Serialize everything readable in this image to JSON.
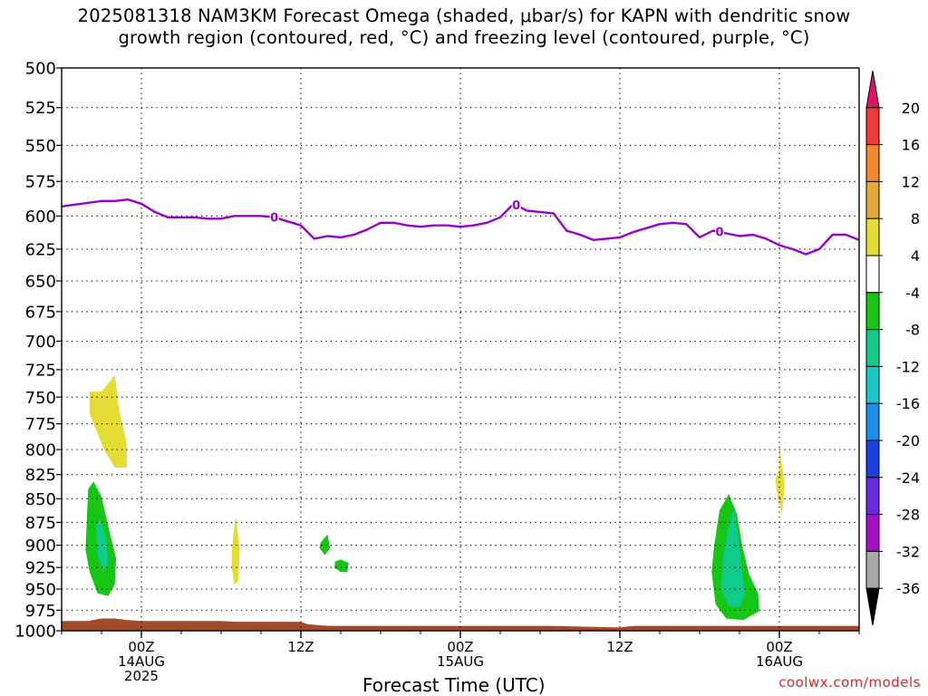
{
  "title": {
    "line1": "2025081318 NAM3KM Forecast Omega (shaded, μbar/s) for KAPN with dendritic snow",
    "line2": "growth region (contoured, red, °C) and freezing level (contoured, purple, °C)"
  },
  "credit": "coolwx.com/models",
  "chart_data": {
    "type": "time-height cross section",
    "x_unit": "hours from 2025-08-13 18Z",
    "xlim": [
      0,
      60
    ],
    "ylim": [
      1000,
      500
    ],
    "xlabel": "Forecast Time (UTC)",
    "y_ticks": [
      500,
      525,
      550,
      575,
      600,
      625,
      650,
      675,
      700,
      725,
      750,
      775,
      800,
      825,
      850,
      875,
      900,
      925,
      950,
      975,
      1000
    ],
    "x_ticks": [
      {
        "x": 6,
        "lines": [
          "00Z",
          "14AUG",
          "2025"
        ]
      },
      {
        "x": 18,
        "lines": [
          "12Z"
        ]
      },
      {
        "x": 30,
        "lines": [
          "00Z",
          "15AUG"
        ]
      },
      {
        "x": 42,
        "lines": [
          "12Z"
        ]
      },
      {
        "x": 54,
        "lines": [
          "00Z",
          "16AUG"
        ]
      }
    ],
    "grid": true,
    "freezing_level": {
      "label": "0",
      "color": "#9900cc",
      "label_x": [
        16.0,
        34.2,
        49.5
      ],
      "points": [
        [
          0,
          593
        ],
        [
          1.5,
          591
        ],
        [
          3,
          589
        ],
        [
          4,
          589
        ],
        [
          5,
          588
        ],
        [
          6,
          591
        ],
        [
          7,
          597
        ],
        [
          8,
          601
        ],
        [
          9,
          601
        ],
        [
          10,
          601
        ],
        [
          11,
          602
        ],
        [
          12,
          602
        ],
        [
          13,
          600
        ],
        [
          14,
          600
        ],
        [
          15,
          600
        ],
        [
          16,
          601
        ],
        [
          17,
          604
        ],
        [
          18,
          607
        ],
        [
          19,
          617
        ],
        [
          20,
          615
        ],
        [
          21,
          616
        ],
        [
          22,
          614
        ],
        [
          23,
          610
        ],
        [
          24,
          605
        ],
        [
          25,
          605
        ],
        [
          26,
          607
        ],
        [
          27,
          608
        ],
        [
          28,
          607
        ],
        [
          29,
          607
        ],
        [
          30,
          608
        ],
        [
          31,
          607
        ],
        [
          32,
          605
        ],
        [
          33,
          601
        ],
        [
          34,
          591
        ],
        [
          35,
          596
        ],
        [
          36,
          597
        ],
        [
          37,
          598
        ],
        [
          38,
          611
        ],
        [
          39,
          614
        ],
        [
          40,
          618
        ],
        [
          41,
          617
        ],
        [
          42,
          616
        ],
        [
          43,
          612
        ],
        [
          44,
          609
        ],
        [
          45,
          606
        ],
        [
          46,
          605
        ],
        [
          47,
          606
        ],
        [
          48,
          616
        ],
        [
          49,
          611
        ],
        [
          50,
          613
        ],
        [
          51,
          615
        ],
        [
          52,
          614
        ],
        [
          53,
          617
        ],
        [
          54,
          622
        ],
        [
          55,
          625
        ],
        [
          56,
          629
        ],
        [
          57,
          625
        ],
        [
          58,
          614
        ],
        [
          59,
          614
        ],
        [
          60,
          618
        ]
      ]
    },
    "omega_regions": [
      {
        "range": "4 to 8",
        "color": "#e3dc32",
        "outline": [
          [
            2.1,
            745
          ],
          [
            3.0,
            745
          ],
          [
            4.0,
            730
          ],
          [
            4.3,
            760
          ],
          [
            4.9,
            795
          ],
          [
            4.9,
            818
          ],
          [
            4.0,
            818
          ],
          [
            3.2,
            800
          ],
          [
            2.5,
            778
          ],
          [
            2.1,
            765
          ]
        ]
      },
      {
        "range": "4 to 8",
        "color": "#e3dc32",
        "outline": [
          [
            12.8,
            905
          ],
          [
            13.1,
            869
          ],
          [
            13.4,
            905
          ],
          [
            13.3,
            940
          ],
          [
            13.0,
            945
          ],
          [
            12.8,
            925
          ]
        ]
      },
      {
        "range": "4 to 8",
        "color": "#e3dc32",
        "outline": [
          [
            54.0,
            820
          ],
          [
            54.0,
            797
          ],
          [
            54.4,
            835
          ],
          [
            54.2,
            866
          ],
          [
            53.9,
            850
          ],
          [
            53.7,
            830
          ]
        ]
      },
      {
        "range": "-8 to -4",
        "color": "#16c614",
        "outline": [
          [
            1.9,
            870
          ],
          [
            2.0,
            840
          ],
          [
            2.4,
            832
          ],
          [
            3.0,
            848
          ],
          [
            3.6,
            885
          ],
          [
            4.1,
            915
          ],
          [
            4.0,
            945
          ],
          [
            3.5,
            958
          ],
          [
            2.7,
            955
          ],
          [
            2.1,
            930
          ],
          [
            1.8,
            905
          ]
        ]
      },
      {
        "range": "-12 to -8",
        "color": "#10c98c",
        "outline": [
          [
            2.6,
            880
          ],
          [
            2.9,
            870
          ],
          [
            3.4,
            895
          ],
          [
            3.5,
            920
          ],
          [
            3.1,
            930
          ],
          [
            2.7,
            910
          ]
        ]
      },
      {
        "range": "-8 to -4",
        "color": "#16c614",
        "outline": [
          [
            19.5,
            897
          ],
          [
            20.0,
            888
          ],
          [
            20.2,
            903
          ],
          [
            19.8,
            911
          ],
          [
            19.4,
            903
          ]
        ]
      },
      {
        "range": "-8 to -4",
        "color": "#16c614",
        "outline": [
          [
            20.6,
            918
          ],
          [
            21.0,
            916
          ],
          [
            21.6,
            920
          ],
          [
            21.5,
            930
          ],
          [
            21.0,
            930
          ],
          [
            20.5,
            925
          ]
        ]
      },
      {
        "range": "-8 to -4",
        "color": "#16c614",
        "outline": [
          [
            49.1,
            900
          ],
          [
            49.5,
            862
          ],
          [
            50.2,
            845
          ],
          [
            50.8,
            866
          ],
          [
            51.2,
            900
          ],
          [
            51.7,
            932
          ],
          [
            52.4,
            955
          ],
          [
            52.5,
            976
          ],
          [
            51.3,
            987
          ],
          [
            50.0,
            985
          ],
          [
            49.2,
            968
          ],
          [
            48.9,
            930
          ]
        ]
      },
      {
        "range": "-12 to -8",
        "color": "#10c98c",
        "outline": [
          [
            49.8,
            910
          ],
          [
            50.2,
            878
          ],
          [
            50.6,
            860
          ],
          [
            51.0,
            900
          ],
          [
            51.2,
            930
          ],
          [
            51.4,
            955
          ],
          [
            51.0,
            972
          ],
          [
            50.2,
            970
          ],
          [
            49.6,
            950
          ]
        ]
      }
    ],
    "terrain": {
      "color": "#a04c28",
      "points": [
        [
          0,
          988
        ],
        [
          2,
          988
        ],
        [
          3,
          985
        ],
        [
          4,
          985
        ],
        [
          5,
          987
        ],
        [
          6,
          988
        ],
        [
          12,
          988
        ],
        [
          13,
          989
        ],
        [
          18,
          989
        ],
        [
          18.5,
          992
        ],
        [
          20,
          994
        ],
        [
          30,
          994
        ],
        [
          37,
          994
        ],
        [
          42,
          996
        ],
        [
          42.5,
          995
        ],
        [
          43,
          994
        ],
        [
          60,
          994
        ]
      ]
    },
    "colorbar": {
      "unit": "μbar/s",
      "labels": [
        "20",
        "16",
        "12",
        "8",
        "4",
        "-4",
        "-8",
        "-12",
        "-16",
        "-20",
        "-24",
        "-28",
        "-32",
        "-36"
      ],
      "bands": [
        {
          "color": "#e31069"
        },
        {
          "color": "#f23a3a"
        },
        {
          "color": "#f0882c"
        },
        {
          "color": "#e2a83a"
        },
        {
          "color": "#e3dc32"
        },
        {
          "color": "#ffffff"
        },
        {
          "color": "#16c614"
        },
        {
          "color": "#10c98c"
        },
        {
          "color": "#16c8c8"
        },
        {
          "color": "#1a8ee8"
        },
        {
          "color": "#1a42e0"
        },
        {
          "color": "#6a2ae0"
        },
        {
          "color": "#a410c8"
        },
        {
          "color": "#a8a8a8"
        },
        {
          "color": "#000000"
        }
      ]
    }
  }
}
